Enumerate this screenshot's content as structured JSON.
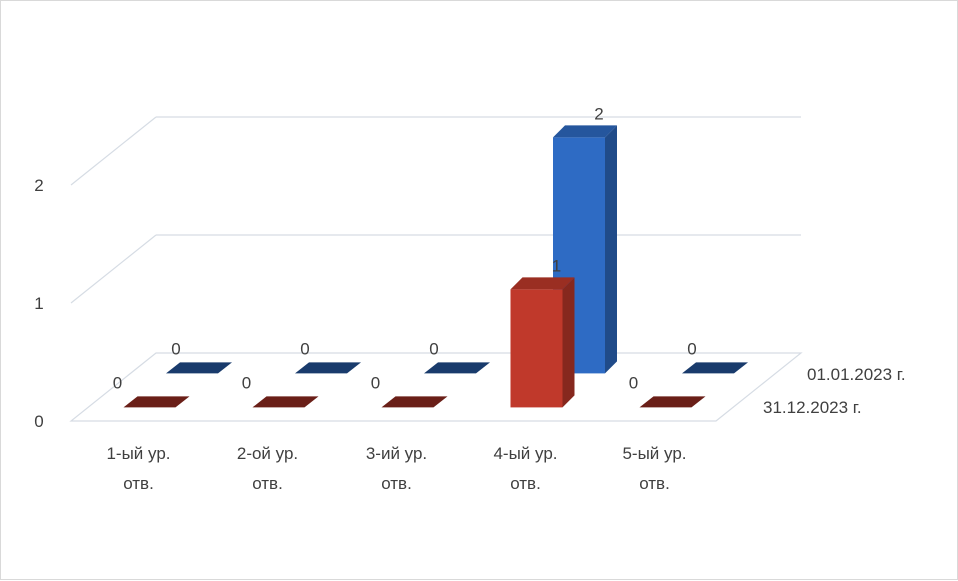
{
  "chart_data": {
    "type": "bar3d",
    "categories": [
      [
        "1-ый ур.",
        "отв."
      ],
      [
        "2-ой ур.",
        "отв."
      ],
      [
        "3-ий ур.",
        "отв."
      ],
      [
        "4-ый ур.",
        "отв."
      ],
      [
        "5-ый ур.",
        "отв."
      ]
    ],
    "series": [
      {
        "name": "31.12.2023 г.",
        "values": [
          0,
          0,
          0,
          1,
          0
        ],
        "color": "#c0392b"
      },
      {
        "name": "01.01.2023 г.",
        "values": [
          0,
          0,
          0,
          2,
          0
        ],
        "color": "#2e6bc4"
      }
    ],
    "yticks": [
      0,
      1,
      2
    ],
    "ylim": [
      0,
      2
    ],
    "grid": true,
    "legend": "depth-axis-labels-right"
  }
}
